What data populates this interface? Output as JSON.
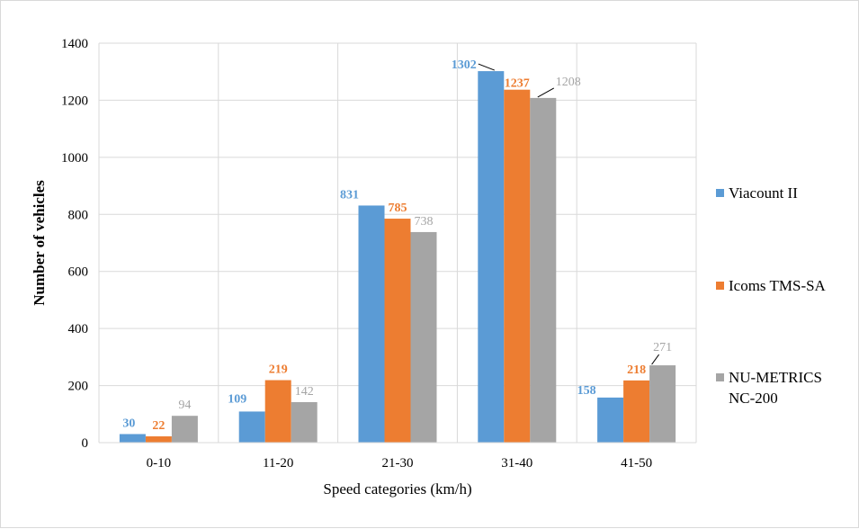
{
  "chart_data": {
    "type": "bar",
    "title": "",
    "xlabel": "Speed categories (km/h)",
    "ylabel": "Number of vehicles",
    "ylim": [
      0,
      1400
    ],
    "yticks": [
      0,
      200,
      400,
      600,
      800,
      1000,
      1200,
      1400
    ],
    "grid": true,
    "legend_position": "right",
    "categories": [
      "0-10",
      "11-20",
      "21-30",
      "31-40",
      "41-50"
    ],
    "series": [
      {
        "name": "Viacount II",
        "color": "#5b9bd5",
        "label_color": "#5b9bd5",
        "label_bold": true,
        "values": [
          30,
          109,
          831,
          1302,
          158
        ]
      },
      {
        "name": "Icoms TMS-SA",
        "color": "#ed7d31",
        "label_color": "#ed7d31",
        "label_bold": true,
        "values": [
          22,
          219,
          785,
          1237,
          218
        ]
      },
      {
        "name": "NU-METRICS NC-200",
        "color": "#a5a5a5",
        "label_color": "#a5a5a5",
        "label_bold": false,
        "values": [
          94,
          142,
          738,
          1208,
          271
        ]
      }
    ]
  }
}
